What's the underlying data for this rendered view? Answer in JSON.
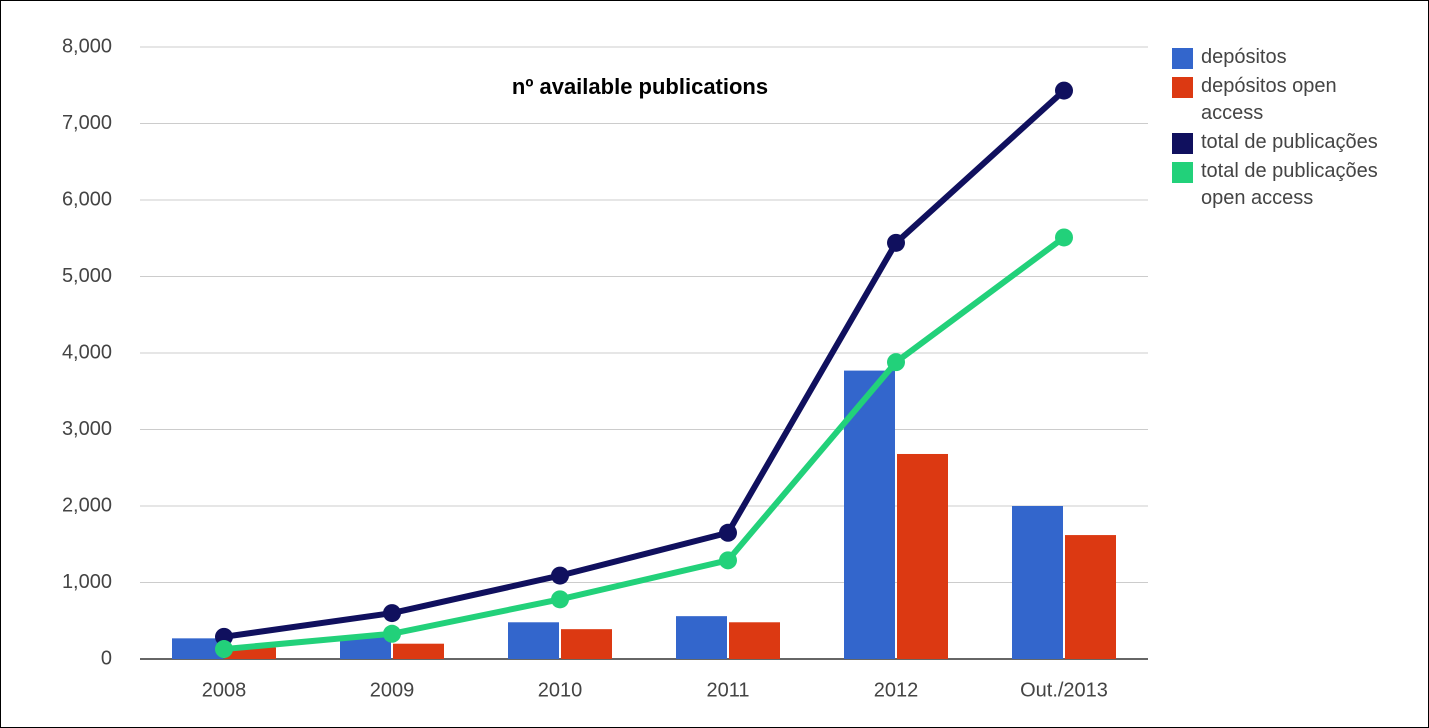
{
  "chart_data": {
    "type": "bar",
    "title": "nº available publications",
    "categories": [
      "2008",
      "2009",
      "2010",
      "2011",
      "2012",
      "Out./2013"
    ],
    "series": [
      {
        "name": "depósitos",
        "type": "bar",
        "color": "#3366cc",
        "values": [
          270,
          300,
          480,
          560,
          3770,
          2000
        ]
      },
      {
        "name": "depósitos open access",
        "type": "bar",
        "color": "#dc3912",
        "values": [
          150,
          200,
          390,
          480,
          2680,
          1620
        ]
      },
      {
        "name": "total de publicações",
        "type": "line",
        "color": "#10105e",
        "values": [
          290,
          600,
          1090,
          1650,
          5440,
          7430
        ]
      },
      {
        "name": "total de publicações open access",
        "type": "line",
        "color": "#22d17a",
        "values": [
          130,
          330,
          780,
          1290,
          3880,
          5510
        ]
      }
    ],
    "ylim": [
      0,
      8000
    ],
    "yticks": [
      0,
      {
        "value": 1000,
        "label": "1,000"
      },
      {
        "value": 2000,
        "label": "2,000"
      },
      {
        "value": 3000,
        "label": "3,000"
      },
      {
        "value": 4000,
        "label": "4,000"
      },
      {
        "value": 5000,
        "label": "5,000"
      },
      {
        "value": 6000,
        "label": "6,000"
      },
      {
        "value": 7000,
        "label": "7,000"
      },
      {
        "value": 8000,
        "label": "8,000"
      }
    ],
    "grid": true
  }
}
